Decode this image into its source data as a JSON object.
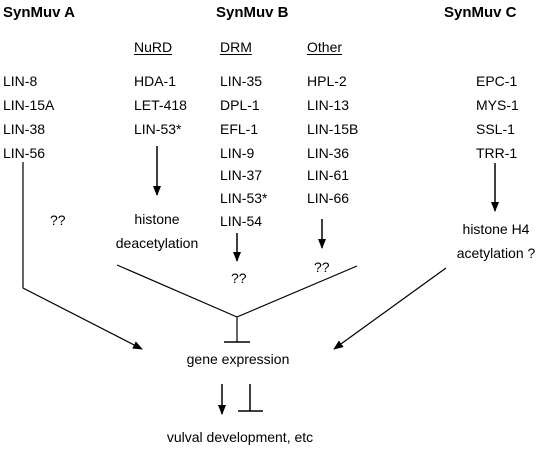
{
  "groups": {
    "a": {
      "title": "SynMuv A",
      "genes": [
        "LIN-8",
        "LIN-15A",
        "LIN-38",
        "LIN-56"
      ],
      "outcome": "??"
    },
    "b": {
      "title": "SynMuv B",
      "nurd": {
        "label": "NuRD",
        "genes": [
          "HDA-1",
          "LET-418",
          "LIN-53*"
        ],
        "outcome": [
          "histone",
          "deacetylation"
        ]
      },
      "drm": {
        "label": "DRM",
        "genes": [
          "LIN-35",
          "DPL-1",
          "EFL-1",
          "LIN-9",
          "LIN-37",
          "LIN-53*",
          "LIN-54"
        ],
        "outcome": "??"
      },
      "other": {
        "label": "Other",
        "genes": [
          "HPL-2",
          "LIN-13",
          "LIN-15B",
          "LIN-36",
          "LIN-61",
          "LIN-66"
        ],
        "outcome": "??"
      }
    },
    "c": {
      "title": "SynMuv C",
      "genes": [
        "EPC-1",
        "MYS-1",
        "SSL-1",
        "TRR-1"
      ],
      "outcome": [
        "histone H4",
        "acetylation ?"
      ]
    }
  },
  "center": "gene expression",
  "bottom": "vulval development, etc"
}
